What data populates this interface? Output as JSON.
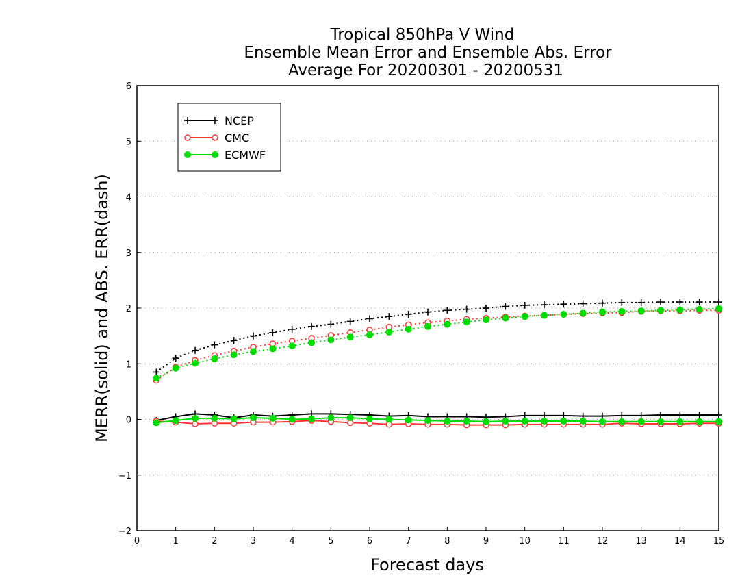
{
  "chart_data": {
    "type": "line",
    "title_lines": [
      "Tropical 850hPa V Wind",
      "Ensemble Mean Error and Ensemble Abs. Error",
      "Average For 20200301 - 20200531"
    ],
    "xlabel": "Forecast days",
    "ylabel": "MERR(solid) and ABS. ERR(dash)",
    "xlim": [
      0,
      15
    ],
    "ylim": [
      -2,
      6
    ],
    "x_ticks": [
      0,
      1,
      2,
      3,
      4,
      5,
      6,
      7,
      8,
      9,
      10,
      11,
      12,
      13,
      14,
      15
    ],
    "y_ticks": [
      -2,
      -1,
      0,
      1,
      2,
      3,
      4,
      5,
      6
    ],
    "y_tick_labels": [
      "−2",
      "−1",
      "0",
      "1",
      "2",
      "3",
      "4",
      "5",
      "6"
    ],
    "grid": "horizontal dotted",
    "legend_position": "top-left",
    "x": [
      0.5,
      1.0,
      1.5,
      2.0,
      2.5,
      3.0,
      3.5,
      4.0,
      4.5,
      5.0,
      5.5,
      6.0,
      6.5,
      7.0,
      7.5,
      8.0,
      8.5,
      9.0,
      9.5,
      10.0,
      10.5,
      11.0,
      11.5,
      12.0,
      12.5,
      13.0,
      13.5,
      14.0,
      14.5,
      15.0
    ],
    "series": [
      {
        "name": "NCEP",
        "color": "#000000",
        "marker": "plus",
        "mean_error": [
          -0.02,
          0.05,
          0.1,
          0.08,
          0.03,
          0.08,
          0.06,
          0.08,
          0.1,
          0.1,
          0.09,
          0.08,
          0.06,
          0.07,
          0.05,
          0.05,
          0.05,
          0.04,
          0.05,
          0.07,
          0.07,
          0.07,
          0.06,
          0.06,
          0.07,
          0.07,
          0.08,
          0.08,
          0.08,
          0.08
        ],
        "abs_error": [
          0.85,
          1.1,
          1.24,
          1.34,
          1.42,
          1.5,
          1.56,
          1.62,
          1.67,
          1.71,
          1.76,
          1.81,
          1.85,
          1.89,
          1.93,
          1.96,
          1.98,
          2.0,
          2.03,
          2.05,
          2.06,
          2.07,
          2.08,
          2.09,
          2.1,
          2.1,
          2.11,
          2.11,
          2.11,
          2.11
        ]
      },
      {
        "name": "CMC",
        "color": "#ff3333",
        "marker": "open-circle",
        "mean_error": [
          -0.03,
          -0.05,
          -0.08,
          -0.07,
          -0.07,
          -0.05,
          -0.05,
          -0.04,
          -0.02,
          -0.04,
          -0.06,
          -0.07,
          -0.09,
          -0.08,
          -0.09,
          -0.09,
          -0.1,
          -0.1,
          -0.1,
          -0.09,
          -0.09,
          -0.09,
          -0.09,
          -0.09,
          -0.07,
          -0.08,
          -0.08,
          -0.08,
          -0.07,
          -0.07
        ],
        "abs_error": [
          0.7,
          0.94,
          1.06,
          1.15,
          1.23,
          1.3,
          1.36,
          1.41,
          1.46,
          1.51,
          1.56,
          1.61,
          1.66,
          1.7,
          1.74,
          1.77,
          1.8,
          1.82,
          1.84,
          1.86,
          1.87,
          1.89,
          1.9,
          1.91,
          1.92,
          1.94,
          1.95,
          1.95,
          1.96,
          1.96
        ]
      },
      {
        "name": "ECMWF",
        "color": "#00dd00",
        "marker": "filled-circle",
        "mean_error": [
          -0.06,
          -0.02,
          0.02,
          0.02,
          0.01,
          0.03,
          0.02,
          0.0,
          0.01,
          0.03,
          0.03,
          0.01,
          0.0,
          -0.01,
          -0.02,
          -0.03,
          -0.03,
          -0.04,
          -0.03,
          -0.03,
          -0.03,
          -0.03,
          -0.03,
          -0.04,
          -0.04,
          -0.04,
          -0.04,
          -0.04,
          -0.04,
          -0.04
        ],
        "abs_error": [
          0.74,
          0.92,
          1.01,
          1.09,
          1.16,
          1.22,
          1.27,
          1.32,
          1.38,
          1.43,
          1.48,
          1.52,
          1.57,
          1.62,
          1.67,
          1.71,
          1.75,
          1.79,
          1.82,
          1.85,
          1.87,
          1.89,
          1.91,
          1.93,
          1.94,
          1.95,
          1.96,
          1.97,
          1.98,
          1.99
        ]
      }
    ]
  }
}
